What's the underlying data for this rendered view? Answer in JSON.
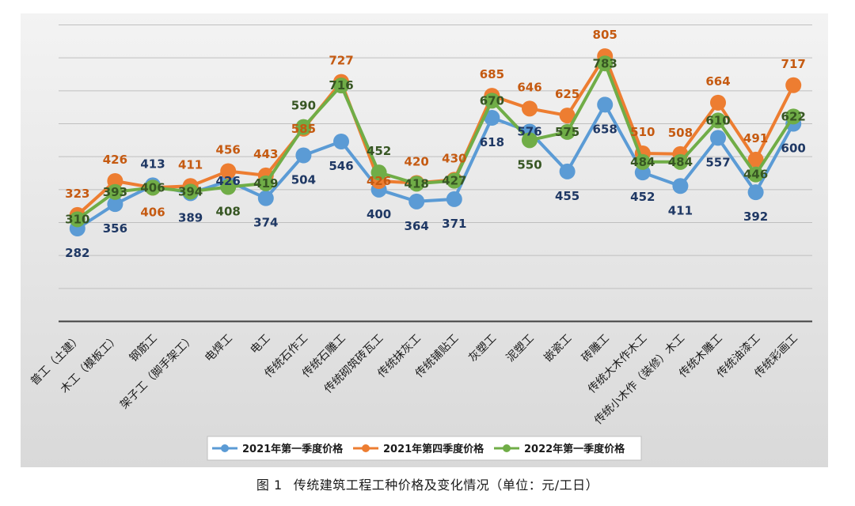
{
  "caption": {
    "figure_number": "图 1",
    "text": "传统建筑工程工种价格及变化情况（单位：元/工日）"
  },
  "chart_data": {
    "type": "line",
    "title": "",
    "xlabel": "",
    "ylabel": "",
    "ylim": [
      0,
      900
    ],
    "grid": true,
    "legend_position": "bottom",
    "categories": [
      "普工（土建）",
      "木工（模板工）",
      "钢筋工",
      "架子工（脚手架工）",
      "电焊工",
      "电工",
      "传统石作工",
      "传统石雕工",
      "传统砌筑砖瓦工",
      "传统抹灰工",
      "传统铺贴工",
      "灰塑工",
      "泥塑工",
      "嵌瓷工",
      "砖雕工",
      "传统大木作木工",
      "传统小木作（装修）木工",
      "传统木雕工",
      "传统油漆工",
      "传统彩画工"
    ],
    "series": [
      {
        "name": "2021年第一季度价格",
        "color": "#5b9bd5",
        "values": [
          282,
          356,
          413,
          389,
          426,
          374,
          504,
          546,
          400,
          364,
          371,
          618,
          576,
          455,
          658,
          452,
          411,
          557,
          392,
          600
        ]
      },
      {
        "name": "2021年第四季度价格",
        "color": "#ed7d31",
        "values": [
          323,
          426,
          406,
          411,
          456,
          443,
          585,
          727,
          426,
          420,
          430,
          685,
          646,
          625,
          805,
          510,
          508,
          664,
          491,
          717
        ]
      },
      {
        "name": "2022年第一季度价格",
        "color": "#70ad47",
        "values": [
          310,
          393,
          406,
          394,
          408,
          419,
          590,
          716,
          452,
          418,
          427,
          670,
          550,
          575,
          783,
          484,
          484,
          610,
          446,
          622
        ]
      }
    ]
  }
}
